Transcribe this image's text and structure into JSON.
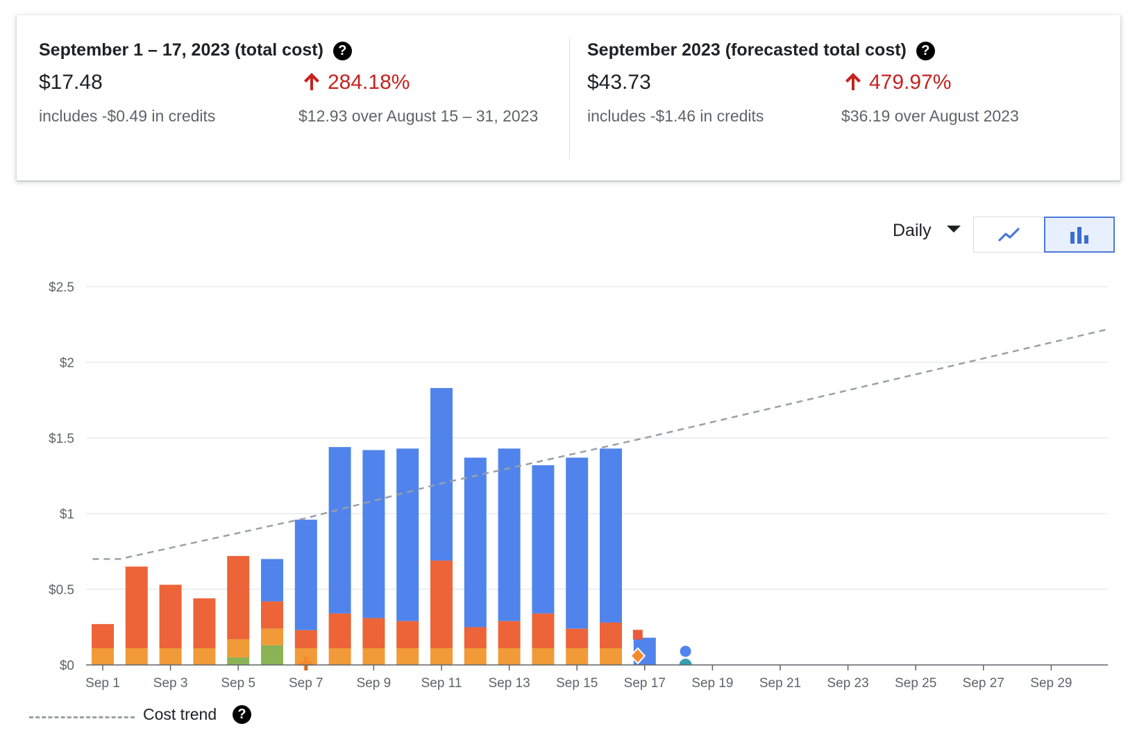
{
  "summary": {
    "current": {
      "title": "September 1 – 17, 2023 (total cost)",
      "amount": "$17.48",
      "credits": "includes -$0.49 in credits",
      "change": "284.18%",
      "comparison": "$12.93 over August 15 – 31, 2023",
      "help_icon": "help-circle-icon"
    },
    "forecast": {
      "title": "September 2023 (forecasted total cost)",
      "amount": "$43.73",
      "credits": "includes -$1.46 in credits",
      "change": "479.97%",
      "comparison": "$36.19 over August 2023",
      "help_icon": "help-circle-icon"
    }
  },
  "controls": {
    "granularity": "Daily",
    "view_options": [
      "line-chart-icon",
      "bar-chart-icon"
    ],
    "selected_view": "bar-chart-icon"
  },
  "chart_data": {
    "type": "bar",
    "stacked": true,
    "categories": [
      "Sep 1",
      "Sep 2",
      "Sep 3",
      "Sep 4",
      "Sep 5",
      "Sep 6",
      "Sep 7",
      "Sep 8",
      "Sep 9",
      "Sep 10",
      "Sep 11",
      "Sep 12",
      "Sep 13",
      "Sep 14",
      "Sep 15",
      "Sep 16",
      "Sep 17"
    ],
    "x_tick_labels": [
      "Sep 1",
      "Sep 3",
      "Sep 5",
      "Sep 7",
      "Sep 9",
      "Sep 11",
      "Sep 13",
      "Sep 15",
      "Sep 17",
      "Sep 19",
      "Sep 21",
      "Sep 23",
      "Sep 25",
      "Sep 27",
      "Sep 29"
    ],
    "x_range_days": [
      1,
      30
    ],
    "y_ticks": [
      "$0",
      "$0.5",
      "$1",
      "$1.5",
      "$2",
      "$2.5"
    ],
    "ylim": [
      0,
      2.5
    ],
    "grid": true,
    "series": [
      {
        "color": "#8bb356",
        "values": [
          0,
          0,
          0,
          0,
          0.05,
          0.13,
          0,
          0,
          0,
          0,
          0,
          0,
          0,
          0,
          0,
          0,
          0
        ]
      },
      {
        "color": "#f19b38",
        "values": [
          0.11,
          0.11,
          0.11,
          0.11,
          0.12,
          0.11,
          0.11,
          0.11,
          0.11,
          0.11,
          0.11,
          0.11,
          0.11,
          0.11,
          0.11,
          0.11,
          0
        ]
      },
      {
        "color": "#ec6438",
        "values": [
          0.16,
          0.54,
          0.42,
          0.33,
          0.55,
          0.18,
          0.12,
          0.23,
          0.2,
          0.18,
          0.58,
          0.14,
          0.18,
          0.23,
          0.13,
          0.17,
          0
        ]
      },
      {
        "color": "#5084ec",
        "values": [
          0,
          0,
          0,
          0,
          0,
          0.28,
          0.73,
          1.1,
          1.11,
          1.14,
          1.14,
          1.12,
          1.14,
          0.98,
          1.13,
          1.15,
          0.18
        ]
      }
    ],
    "trend": {
      "name": "Cost trend",
      "style": "dashed",
      "color": "#9aa0a6",
      "points": [
        [
          0.7,
          0.7
        ],
        [
          1.5,
          0.7
        ],
        [
          7,
          0.97
        ],
        [
          11,
          1.2
        ],
        [
          17,
          1.5
        ],
        [
          30.7,
          2.22
        ]
      ]
    },
    "markers": [
      {
        "shape": "plus-icon",
        "day": 7,
        "value": 0,
        "color": "#f28b30"
      },
      {
        "shape": "square-icon",
        "day": 17,
        "value": 0.2,
        "color": "#ec5a3b"
      },
      {
        "shape": "diamond-icon",
        "day": 17,
        "value": 0.06,
        "color": "#f28b30"
      },
      {
        "shape": "circle-icon",
        "day": 18,
        "value": 0.09,
        "color": "#5084ec"
      },
      {
        "shape": "person-icon",
        "day": 18,
        "value": 0,
        "color": "#37a0b0"
      }
    ],
    "legend": {
      "position": "bottom-left",
      "entries": [
        "Cost trend"
      ]
    }
  }
}
